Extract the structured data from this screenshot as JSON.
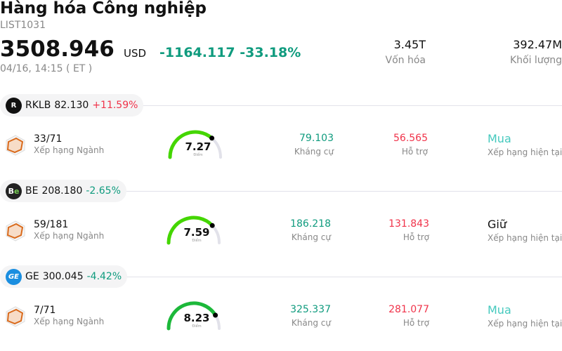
{
  "header": {
    "title": "Hàng hóa Công nghiệp",
    "code": "LIST1031",
    "price": "3508.946",
    "currency": "USD",
    "change": "-1164.117 -33.18%",
    "time": "04/16, 14:15  ( ET )",
    "market_cap": {
      "value": "3.45T",
      "label": "Vốn hóa"
    },
    "volume": {
      "value": "392.47M",
      "label": "Khối lượng"
    }
  },
  "colors": {
    "up": "#f0334a",
    "down": "#0f9b7e",
    "buy": "#45c9be"
  },
  "labels": {
    "rank": "Xếp hạng Ngành",
    "score": "Điểm",
    "resistance": "Kháng cự",
    "support": "Hỗ trợ",
    "current_rating": "Xếp hạng hiện tại"
  },
  "stocks": [
    {
      "symbol": "RKLB",
      "price": "82.130",
      "change": "+11.59%",
      "direction": "up",
      "logo": "rocket-lab-logo",
      "rank": "33/71",
      "score": "7.27",
      "score_value": 7.27,
      "gauge_color": "#44d600",
      "resistance": "79.103",
      "support": "56.565",
      "rating": "Mua"
    },
    {
      "symbol": "BE",
      "price": "208.180",
      "change": "-2.65%",
      "direction": "down",
      "logo": "bloom-energy-logo",
      "rank": "59/181",
      "score": "7.59",
      "score_value": 7.59,
      "gauge_color": "#44d600",
      "resistance": "186.218",
      "support": "131.843",
      "rating": "Giữ"
    },
    {
      "symbol": "GE",
      "price": "300.045",
      "change": "-4.42%",
      "direction": "down",
      "logo": "ge-logo",
      "rank": "7/71",
      "score": "8.23",
      "score_value": 8.23,
      "gauge_color": "#1cb83a",
      "resistance": "325.337",
      "support": "281.077",
      "rating": "Mua"
    }
  ]
}
